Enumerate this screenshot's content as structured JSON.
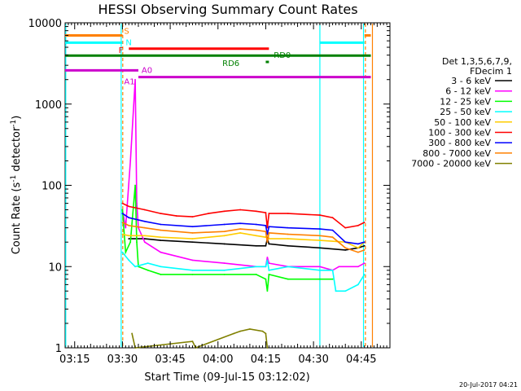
{
  "chart_data": {
    "type": "line",
    "title": "HESSI Observing Summary Count Rates",
    "xlabel": "Start Time (09-Jul-15 03:12:02)",
    "ylabel_prefix": "Count Rate (s",
    "ylabel_sup1": "-1",
    "ylabel_mid": " detector",
    "ylabel_sup2": "-1",
    "ylabel_suffix": ")",
    "y_scale": "log",
    "ylim": [
      1,
      10000
    ],
    "xlim_minutes": [
      0,
      102
    ],
    "x_ticks": [
      {
        "label": "03:15",
        "min": 3
      },
      {
        "label": "03:30",
        "min": 18
      },
      {
        "label": "03:45",
        "min": 33
      },
      {
        "label": "04:00",
        "min": 48
      },
      {
        "label": "04:15",
        "min": 63
      },
      {
        "label": "04:30",
        "min": 78
      },
      {
        "label": "04:45",
        "min": 93
      }
    ],
    "y_ticks": [
      {
        "label": "1",
        "value": 1
      },
      {
        "label": "10",
        "value": 10
      },
      {
        "label": "100",
        "value": 100
      },
      {
        "label": "1000",
        "value": 1000
      },
      {
        "label": "10000",
        "value": 10000
      }
    ],
    "legend_header": [
      "Det 1,3,5,6,7,9,",
      "FDecim 1"
    ],
    "legend_placement": "right",
    "series": [
      {
        "name": "3 - 6 keV",
        "color": "#000000",
        "points": [
          [
            20,
            22
          ],
          [
            25,
            22
          ],
          [
            30,
            21
          ],
          [
            40,
            20
          ],
          [
            50,
            19
          ],
          [
            60,
            18
          ],
          [
            63,
            18
          ],
          [
            63.5,
            22
          ],
          [
            64,
            19
          ],
          [
            70,
            18
          ],
          [
            80,
            17
          ],
          [
            88,
            16
          ],
          [
            92,
            17
          ],
          [
            94,
            18
          ]
        ]
      },
      {
        "name": "6 - 12 keV",
        "color": "#ff00ff",
        "points": [
          [
            18,
            50
          ],
          [
            19,
            30
          ],
          [
            20.5,
            200
          ],
          [
            22,
            2000
          ],
          [
            22.5,
            60
          ],
          [
            23,
            30
          ],
          [
            25,
            20
          ],
          [
            30,
            15
          ],
          [
            40,
            12
          ],
          [
            50,
            11
          ],
          [
            60,
            10
          ],
          [
            63,
            10
          ],
          [
            63.5,
            13
          ],
          [
            64,
            11
          ],
          [
            70,
            10
          ],
          [
            80,
            10
          ],
          [
            84,
            9
          ],
          [
            86,
            10
          ],
          [
            92,
            10
          ],
          [
            94,
            11
          ]
        ]
      },
      {
        "name": "12 - 25 keV",
        "color": "#00ff00",
        "points": [
          [
            18,
            50
          ],
          [
            19,
            15
          ],
          [
            20.5,
            20
          ],
          [
            22,
            100
          ],
          [
            22.5,
            20
          ],
          [
            23,
            10
          ],
          [
            26,
            9
          ],
          [
            30,
            8
          ],
          [
            40,
            8
          ],
          [
            50,
            8
          ],
          [
            60,
            8
          ],
          [
            63,
            7
          ],
          [
            63.5,
            5
          ],
          [
            64,
            8
          ],
          [
            70,
            7
          ],
          [
            80,
            7
          ],
          [
            84,
            7
          ]
        ]
      },
      {
        "name": "25 - 50 keV",
        "color": "#00ffff",
        "points": [
          [
            18,
            15
          ],
          [
            20,
            12
          ],
          [
            22,
            10
          ],
          [
            26,
            11
          ],
          [
            30,
            10
          ],
          [
            40,
            9
          ],
          [
            50,
            9
          ],
          [
            60,
            10
          ],
          [
            63,
            10
          ],
          [
            63.5,
            12
          ],
          [
            64,
            9
          ],
          [
            70,
            10
          ],
          [
            80,
            9
          ],
          [
            84,
            9
          ],
          [
            85,
            5
          ],
          [
            88,
            5
          ],
          [
            92,
            6
          ],
          [
            94,
            8
          ]
        ]
      },
      {
        "name": "50 - 100 keV",
        "color": "#ffcc00",
        "points": [
          [
            18,
            25
          ],
          [
            20,
            24
          ],
          [
            25,
            24
          ],
          [
            30,
            23
          ],
          [
            40,
            22
          ],
          [
            50,
            24
          ],
          [
            55,
            26
          ],
          [
            60,
            24
          ],
          [
            63,
            23
          ],
          [
            63.5,
            25
          ],
          [
            64,
            22
          ],
          [
            70,
            22
          ],
          [
            80,
            21
          ],
          [
            88,
            20
          ],
          [
            92,
            17
          ],
          [
            94,
            20
          ]
        ]
      },
      {
        "name": "100 - 300 keV",
        "color": "#ff0000",
        "points": [
          [
            18,
            60
          ],
          [
            20,
            55
          ],
          [
            25,
            50
          ],
          [
            30,
            45
          ],
          [
            35,
            42
          ],
          [
            40,
            41
          ],
          [
            45,
            45
          ],
          [
            50,
            48
          ],
          [
            55,
            50
          ],
          [
            60,
            48
          ],
          [
            63,
            46
          ],
          [
            63.5,
            30
          ],
          [
            64,
            45
          ],
          [
            70,
            45
          ],
          [
            80,
            43
          ],
          [
            84,
            40
          ],
          [
            88,
            30
          ],
          [
            92,
            32
          ],
          [
            94,
            35
          ]
        ]
      },
      {
        "name": "300 - 800 keV",
        "color": "#0000ff",
        "points": [
          [
            18,
            45
          ],
          [
            20,
            40
          ],
          [
            25,
            36
          ],
          [
            30,
            33
          ],
          [
            40,
            31
          ],
          [
            50,
            33
          ],
          [
            55,
            34
          ],
          [
            60,
            33
          ],
          [
            63,
            32
          ],
          [
            63.5,
            25
          ],
          [
            64,
            31
          ],
          [
            70,
            30
          ],
          [
            80,
            29
          ],
          [
            84,
            28
          ],
          [
            88,
            20
          ],
          [
            92,
            19
          ],
          [
            94,
            20
          ]
        ]
      },
      {
        "name": "800 - 7000 keV",
        "color": "#ff8000",
        "points": [
          [
            18,
            35
          ],
          [
            20,
            32
          ],
          [
            25,
            30
          ],
          [
            30,
            28
          ],
          [
            40,
            26
          ],
          [
            50,
            27
          ],
          [
            55,
            29
          ],
          [
            60,
            28
          ],
          [
            63,
            27
          ],
          [
            63.5,
            20
          ],
          [
            64,
            26
          ],
          [
            70,
            25
          ],
          [
            80,
            24
          ],
          [
            84,
            23
          ],
          [
            88,
            17
          ],
          [
            92,
            15
          ],
          [
            94,
            16
          ]
        ]
      },
      {
        "name": "7000 - 20000 keV",
        "color": "#808000",
        "points": [
          [
            21,
            1.5
          ],
          [
            22,
            1
          ],
          [
            40,
            1.2
          ],
          [
            41,
            1
          ],
          [
            53,
            1.5
          ],
          [
            55,
            1.6
          ],
          [
            58,
            1.7
          ],
          [
            62,
            1.6
          ],
          [
            63,
            1.5
          ],
          [
            63.5,
            1
          ]
        ]
      }
    ],
    "flag_bars": [
      {
        "label": "S",
        "color": "#ff8000",
        "y": 7000,
        "segments": [
          [
            0,
            18
          ],
          [
            94,
            96
          ]
        ],
        "label_min": 18.5,
        "label_pos": "above"
      },
      {
        "label": "N",
        "color": "#00ffff",
        "y": 5700,
        "segments": [
          [
            0,
            18
          ],
          [
            80,
            94
          ]
        ],
        "label_min": 18.5,
        "label_pos": "right"
      },
      {
        "label": "F",
        "color": "#ff0000",
        "y": 4800,
        "segments": [
          [
            20,
            64
          ]
        ],
        "label_min": 18.5,
        "label_pos": "left"
      },
      {
        "label": "RD0",
        "color": "#008000",
        "y": 3950,
        "segments": [
          [
            0,
            96
          ]
        ],
        "label_min": 65,
        "label_pos": "right"
      },
      {
        "label": "RD6",
        "color": "#008000",
        "y": 3300,
        "segments": [
          [
            63,
            64
          ]
        ],
        "label_min": 55,
        "label_pos": "left"
      },
      {
        "label": "A0",
        "color": "#cc00cc",
        "y": 2600,
        "segments": [
          [
            0,
            23
          ]
        ],
        "label_min": 23.5,
        "label_pos": "right"
      },
      {
        "label": "A1",
        "color": "#cc00cc",
        "y": 2150,
        "segments": [
          [
            23,
            96
          ]
        ],
        "label_min": 18.5,
        "label_pos": "below"
      }
    ],
    "vertical_markers": [
      {
        "min": 0.2,
        "color": "#00ffff",
        "style": "solid"
      },
      {
        "min": 17.6,
        "color": "#00ffff",
        "style": "solid"
      },
      {
        "min": 18.1,
        "color": "#ff8000",
        "style": "dashed"
      },
      {
        "min": 80,
        "color": "#00ffff",
        "style": "solid"
      },
      {
        "min": 93.7,
        "color": "#00ffff",
        "style": "solid"
      },
      {
        "min": 94.3,
        "color": "#ff8000",
        "style": "dashed"
      },
      {
        "min": 96.5,
        "color": "#ff8000",
        "style": "solid"
      }
    ],
    "grid": false
  },
  "timestamp": "20-Jul-2017 04:21"
}
